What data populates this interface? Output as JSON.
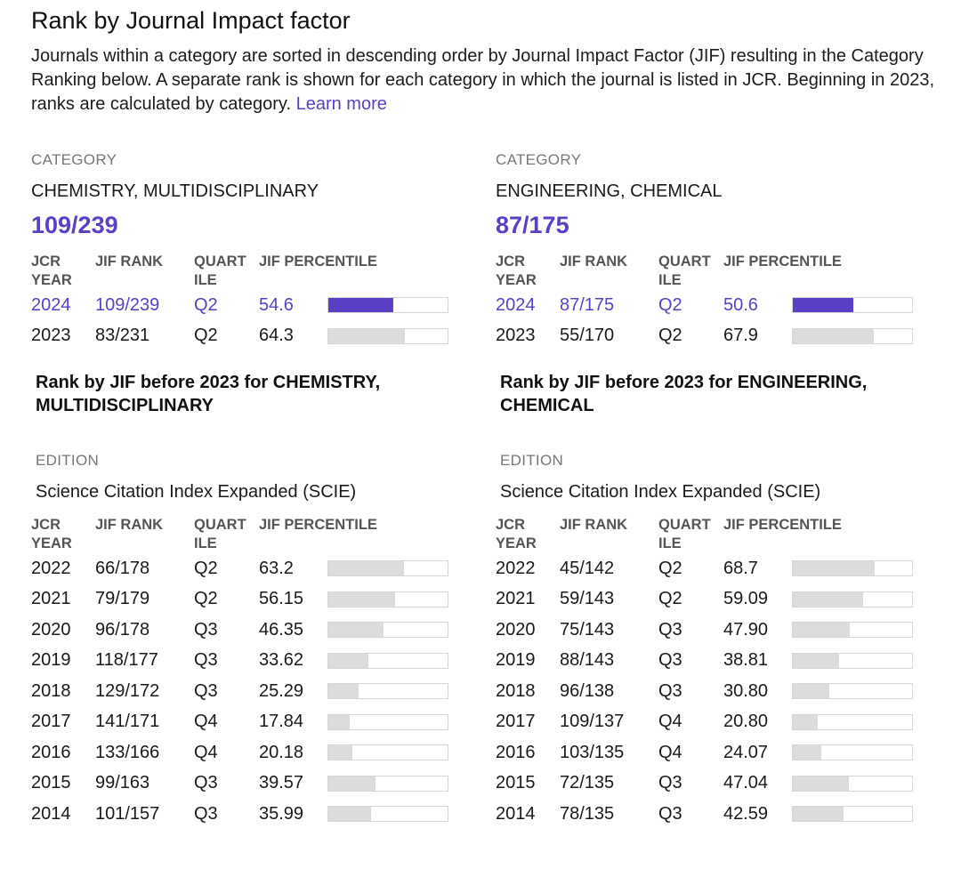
{
  "header": {
    "title": "Rank by Journal Impact factor",
    "description": "Journals within a category are sorted in descending order by Journal Impact Factor (JIF) resulting in the Category Ranking below. A separate rank is shown for each category in which the journal is listed in JCR. Beginning in 2023, ranks are calculated by category.",
    "learn_more": "Learn more"
  },
  "columns_header": {
    "jcr_year": "JCR YEAR",
    "jif_rank": "JIF RANK",
    "quartile": "QUARTILE",
    "jif_percentile": "JIF PERCENTILE"
  },
  "categories": [
    {
      "category_label": "CATEGORY",
      "name": "CHEMISTRY, MULTIDISCIPLINARY",
      "rank": "109/239",
      "recent_rows": [
        {
          "year": "2024",
          "rank": "109/239",
          "quartile": "Q2",
          "percentile": "54.6",
          "pct": 54.6,
          "current": true
        },
        {
          "year": "2023",
          "rank": "83/231",
          "quartile": "Q2",
          "percentile": "64.3",
          "pct": 64.3,
          "current": false
        }
      ],
      "before_title": "Rank by JIF before 2023 for CHEMISTRY, MULTIDISCIPLINARY",
      "edition_label": "EDITION",
      "edition": "Science Citation Index Expanded (SCIE)",
      "history_rows": [
        {
          "year": "2022",
          "rank": "66/178",
          "quartile": "Q2",
          "percentile": "63.2",
          "pct": 63.2
        },
        {
          "year": "2021",
          "rank": "79/179",
          "quartile": "Q2",
          "percentile": "56.15",
          "pct": 56.15
        },
        {
          "year": "2020",
          "rank": "96/178",
          "quartile": "Q3",
          "percentile": "46.35",
          "pct": 46.35
        },
        {
          "year": "2019",
          "rank": "118/177",
          "quartile": "Q3",
          "percentile": "33.62",
          "pct": 33.62
        },
        {
          "year": "2018",
          "rank": "129/172",
          "quartile": "Q3",
          "percentile": "25.29",
          "pct": 25.29
        },
        {
          "year": "2017",
          "rank": "141/171",
          "quartile": "Q4",
          "percentile": "17.84",
          "pct": 17.84
        },
        {
          "year": "2016",
          "rank": "133/166",
          "quartile": "Q4",
          "percentile": "20.18",
          "pct": 20.18
        },
        {
          "year": "2015",
          "rank": "99/163",
          "quartile": "Q3",
          "percentile": "39.57",
          "pct": 39.57
        },
        {
          "year": "2014",
          "rank": "101/157",
          "quartile": "Q3",
          "percentile": "35.99",
          "pct": 35.99
        }
      ]
    },
    {
      "category_label": "CATEGORY",
      "name": "ENGINEERING, CHEMICAL",
      "rank": "87/175",
      "recent_rows": [
        {
          "year": "2024",
          "rank": "87/175",
          "quartile": "Q2",
          "percentile": "50.6",
          "pct": 50.6,
          "current": true
        },
        {
          "year": "2023",
          "rank": "55/170",
          "quartile": "Q2",
          "percentile": "67.9",
          "pct": 67.9,
          "current": false
        }
      ],
      "before_title": "Rank by JIF before 2023 for ENGINEERING, CHEMICAL",
      "edition_label": "EDITION",
      "edition": "Science Citation Index Expanded (SCIE)",
      "history_rows": [
        {
          "year": "2022",
          "rank": "45/142",
          "quartile": "Q2",
          "percentile": "68.7",
          "pct": 68.7
        },
        {
          "year": "2021",
          "rank": "59/143",
          "quartile": "Q2",
          "percentile": "59.09",
          "pct": 59.09
        },
        {
          "year": "2020",
          "rank": "75/143",
          "quartile": "Q3",
          "percentile": "47.90",
          "pct": 47.9
        },
        {
          "year": "2019",
          "rank": "88/143",
          "quartile": "Q3",
          "percentile": "38.81",
          "pct": 38.81
        },
        {
          "year": "2018",
          "rank": "96/138",
          "quartile": "Q3",
          "percentile": "30.80",
          "pct": 30.8
        },
        {
          "year": "2017",
          "rank": "109/137",
          "quartile": "Q4",
          "percentile": "20.80",
          "pct": 20.8
        },
        {
          "year": "2016",
          "rank": "103/135",
          "quartile": "Q4",
          "percentile": "24.07",
          "pct": 24.07
        },
        {
          "year": "2015",
          "rank": "72/135",
          "quartile": "Q3",
          "percentile": "47.04",
          "pct": 47.04
        },
        {
          "year": "2014",
          "rank": "78/135",
          "quartile": "Q3",
          "percentile": "42.59",
          "pct": 42.59
        }
      ]
    }
  ]
}
